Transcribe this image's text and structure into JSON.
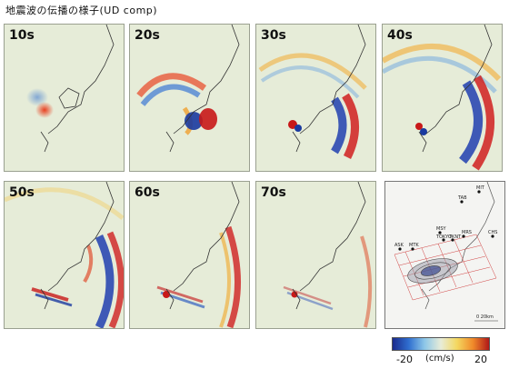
{
  "title": "地震波の伝播の様子(UD comp)",
  "panels": [
    {
      "label": "10s"
    },
    {
      "label": "20s"
    },
    {
      "label": "30s"
    },
    {
      "label": "40s"
    },
    {
      "label": "50s"
    },
    {
      "label": "60s"
    },
    {
      "label": "70s"
    }
  ],
  "reference_map": {
    "stations": [
      "MIT",
      "TAB",
      "MSY",
      "TOKYO",
      "TKNT",
      "MRS",
      "CHS",
      "ASK",
      "MTK"
    ],
    "scale_label": "0 20km"
  },
  "colorbar": {
    "min_label": "-20",
    "unit_label": "(cm/s)",
    "max_label": "20",
    "colors": [
      "#1a2a8c",
      "#2f6fd0",
      "#8ec8e8",
      "#e8ecd8",
      "#f4d860",
      "#f08a2a",
      "#b01818"
    ]
  }
}
